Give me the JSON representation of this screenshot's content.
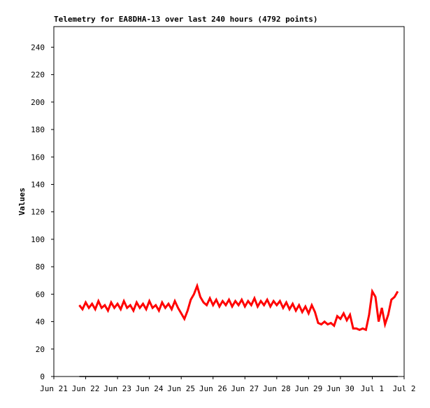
{
  "chart_data": {
    "type": "line",
    "title": "Telemetry for EA8DHA-13 over last 240 hours (4792 points)",
    "ylabel": "Values",
    "xlim": [
      0,
      11
    ],
    "xticks": [
      {
        "value": 0,
        "label": "Jun 21"
      },
      {
        "value": 1,
        "label": "Jun 22"
      },
      {
        "value": 2,
        "label": "Jun 23"
      },
      {
        "value": 3,
        "label": "Jun 24"
      },
      {
        "value": 4,
        "label": "Jun 25"
      },
      {
        "value": 5,
        "label": "Jun 26"
      },
      {
        "value": 6,
        "label": "Jun 27"
      },
      {
        "value": 7,
        "label": "Jun 28"
      },
      {
        "value": 8,
        "label": "Jun 29"
      },
      {
        "value": 9,
        "label": "Jun 30"
      },
      {
        "value": 10,
        "label": "Jul 1"
      },
      {
        "value": 11,
        "label": "Jul 2"
      }
    ],
    "ylim": [
      0,
      255
    ],
    "yticks": [
      0,
      20,
      40,
      60,
      80,
      100,
      120,
      140,
      160,
      180,
      200,
      220,
      240
    ],
    "series": [
      {
        "color": "#ff0000",
        "x": [
          0.8,
          0.9,
          1.0,
          1.1,
          1.2,
          1.3,
          1.4,
          1.5,
          1.6,
          1.7,
          1.8,
          1.9,
          2.0,
          2.1,
          2.2,
          2.3,
          2.4,
          2.5,
          2.6,
          2.7,
          2.8,
          2.9,
          3.0,
          3.1,
          3.2,
          3.3,
          3.4,
          3.5,
          3.6,
          3.7,
          3.8,
          3.9,
          4.0,
          4.1,
          4.2,
          4.3,
          4.4,
          4.5,
          4.6,
          4.7,
          4.8,
          4.9,
          5.0,
          5.1,
          5.2,
          5.3,
          5.4,
          5.5,
          5.6,
          5.7,
          5.8,
          5.9,
          6.0,
          6.1,
          6.2,
          6.3,
          6.4,
          6.5,
          6.6,
          6.7,
          6.8,
          6.9,
          7.0,
          7.1,
          7.2,
          7.3,
          7.4,
          7.5,
          7.6,
          7.7,
          7.8,
          7.9,
          8.0,
          8.1,
          8.2,
          8.3,
          8.4,
          8.5,
          8.6,
          8.7,
          8.8,
          8.9,
          9.0,
          9.1,
          9.2,
          9.3,
          9.4,
          9.5,
          9.6,
          9.7,
          9.8,
          9.9,
          10.0,
          10.1,
          10.2,
          10.3,
          10.4,
          10.5,
          10.6,
          10.7,
          10.8
        ],
        "values": [
          52,
          49,
          54,
          50,
          53,
          49,
          55,
          50,
          52,
          48,
          54,
          50,
          53,
          49,
          55,
          50,
          52,
          48,
          54,
          50,
          53,
          49,
          55,
          50,
          52,
          48,
          54,
          50,
          53,
          49,
          55,
          50,
          46,
          42,
          48,
          56,
          60,
          66,
          58,
          54,
          52,
          57,
          52,
          56,
          51,
          55,
          52,
          56,
          51,
          55,
          52,
          56,
          51,
          55,
          52,
          57,
          51,
          55,
          52,
          56,
          51,
          55,
          52,
          55,
          50,
          54,
          49,
          53,
          48,
          52,
          47,
          51,
          46,
          52,
          47,
          39,
          38,
          40,
          38,
          39,
          37,
          44,
          42,
          46,
          41,
          45,
          35,
          35,
          34,
          35,
          34,
          45,
          62,
          58,
          40,
          50,
          38,
          45,
          56,
          58,
          62
        ]
      },
      {
        "color": "#000000",
        "x": [
          0.8,
          10.8
        ],
        "values": [
          0,
          0
        ]
      }
    ]
  }
}
